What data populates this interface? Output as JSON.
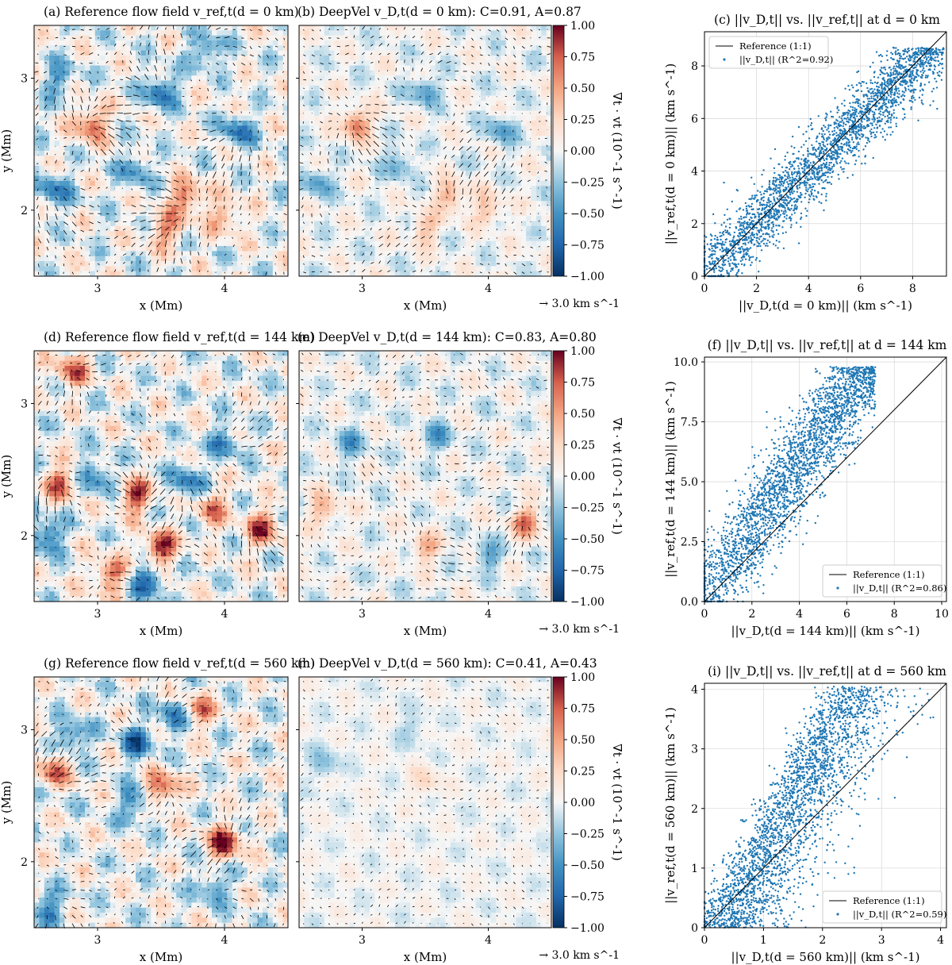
{
  "figure": {
    "rows": [
      {
        "depth_km": 0,
        "ref_title": "(a) Reference flow field v_ref,t(d = 0 km)",
        "deep_title": "(b) DeepVel v_D,t(d = 0 km): C=0.91, A=0.87",
        "scatter_title": "(c) ||v_D,t|| vs. ||v_ref,t|| at d = 0 km",
        "scatter_ylabel": "||v_ref,t(d = 0 km)|| (km s^-1)",
        "scatter_xlabel": "||v_D,t(d = 0 km)|| (km s^-1)"
      },
      {
        "depth_km": 144,
        "ref_title": "(d) Reference flow field v_ref,t(d = 144 km)",
        "deep_title": "(e) DeepVel v_D,t(d = 144 km): C=0.83, A=0.80",
        "scatter_title": "(f) ||v_D,t|| vs. ||v_ref,t|| at d = 144 km",
        "scatter_ylabel": "||v_ref,t(d = 144 km)|| (km s^-1)",
        "scatter_xlabel": "||v_D,t(d = 144 km)|| (km s^-1)"
      },
      {
        "depth_km": 560,
        "ref_title": "(g) Reference flow field v_ref,t(d = 560 km)",
        "deep_title": "(h) DeepVel v_D,t(d = 560 km): C=0.41, A=0.43",
        "scatter_title": "(i) ||v_D,t|| vs. ||v_ref,t|| at d = 560 km",
        "scatter_ylabel": "||v_ref,t(d = 560 km)|| (km s^-1)",
        "scatter_xlabel": "||v_D,t(d = 560 km)|| (km s^-1)"
      }
    ],
    "map_xlabel": "x (Mm)",
    "map_ylabel": "y (Mm)",
    "colorbar_label": "∇t · vt (10^-1 s^-1)",
    "quiver_key": "→ 3.0 km s^-1",
    "colors": {
      "positive": "#67001f",
      "negative": "#053061",
      "scatter": "#1f77b4",
      "reference_line": "#000000"
    }
  },
  "chart_data": [
    {
      "type": "heatmap",
      "panel": "a",
      "title": "(a) Reference flow field v_ref,t(d = 0 km)",
      "xlabel": "x (Mm)",
      "ylabel": "y (Mm)",
      "xlim": [
        2.5,
        4.5
      ],
      "ylim": [
        1.5,
        3.4
      ],
      "xticks": [
        3,
        4
      ],
      "yticks": [
        2,
        3
      ],
      "overlay": "velocity arrows",
      "features": [
        {
          "x": 2.95,
          "y": 2.65,
          "strength": 0.8
        },
        {
          "x": 3.7,
          "y": 2.1,
          "strength": 0.7
        },
        {
          "x": 3.55,
          "y": 1.85,
          "strength": 0.6
        },
        {
          "x": 4.0,
          "y": 1.95,
          "strength": 0.5
        },
        {
          "x": 2.65,
          "y": 2.15,
          "strength": -0.6
        },
        {
          "x": 3.5,
          "y": 2.9,
          "strength": -0.7
        },
        {
          "x": 3.3,
          "y": 2.3,
          "strength": -0.5
        },
        {
          "x": 4.1,
          "y": 2.6,
          "strength": -0.6
        },
        {
          "x": 2.7,
          "y": 3.0,
          "strength": -0.5
        },
        {
          "x": 3.85,
          "y": 3.2,
          "strength": -0.55
        }
      ]
    },
    {
      "type": "heatmap",
      "panel": "b",
      "title": "(b) DeepVel v_D,t(d = 0 km): C=0.91, A=0.87",
      "xlabel": "x (Mm)",
      "xlim": [
        2.5,
        4.5
      ],
      "ylim": [
        1.5,
        3.4
      ],
      "xticks": [
        3,
        4
      ],
      "yticks": [
        2,
        3
      ],
      "colorbar": {
        "min": -1.0,
        "max": 1.0,
        "ticks": [
          -1.0,
          -0.75,
          -0.5,
          -0.25,
          0.0,
          0.25,
          0.5,
          0.75,
          1.0
        ],
        "label": "∇t · vt (10^-1 s^-1)",
        "colormap": "RdBu_r"
      },
      "features": [
        {
          "x": 2.95,
          "y": 2.65,
          "strength": 0.7
        },
        {
          "x": 3.7,
          "y": 2.1,
          "strength": 0.5
        },
        {
          "x": 3.5,
          "y": 1.85,
          "strength": 0.4
        },
        {
          "x": 4.0,
          "y": 2.0,
          "strength": 0.4
        },
        {
          "x": 2.65,
          "y": 2.2,
          "strength": -0.45
        },
        {
          "x": 3.5,
          "y": 2.9,
          "strength": -0.5
        },
        {
          "x": 3.3,
          "y": 2.35,
          "strength": -0.4
        },
        {
          "x": 4.1,
          "y": 2.6,
          "strength": -0.45
        }
      ]
    },
    {
      "type": "scatter",
      "panel": "c",
      "title": "(c) ||v_D,t|| vs. ||v_ref,t|| at d = 0 km",
      "xlabel": "||v_D,t(d = 0 km)|| (km s^-1)",
      "ylabel": "||v_ref,t(d = 0 km)|| (km s^-1)",
      "xlim": [
        0,
        9.3
      ],
      "ylim": [
        0,
        9.3
      ],
      "xticks": [
        0,
        2,
        4,
        6,
        8
      ],
      "yticks": [
        0,
        2,
        4,
        6,
        8
      ],
      "grid": true,
      "legend_position": "top-left",
      "series": [
        {
          "name": "Reference (1:1)",
          "type": "line",
          "x": [
            0,
            9.3
          ],
          "y": [
            0,
            9.3
          ]
        },
        {
          "name": "||v_D,t|| (R^2=0.92)",
          "type": "scatter",
          "r2": 0.92,
          "x_range": [
            0,
            9.2
          ],
          "y_range": [
            0,
            8.7
          ],
          "spread": 0.75
        }
      ]
    },
    {
      "type": "heatmap",
      "panel": "d",
      "title": "(d) Reference flow field v_ref,t(d = 144 km)",
      "xlabel": "x (Mm)",
      "ylabel": "y (Mm)",
      "xlim": [
        2.5,
        4.5
      ],
      "ylim": [
        1.5,
        3.4
      ],
      "xticks": [
        3,
        4
      ],
      "yticks": [
        2,
        3
      ],
      "features": [
        {
          "x": 3.5,
          "y": 1.9,
          "strength": 0.9
        },
        {
          "x": 3.3,
          "y": 2.3,
          "strength": 0.8
        },
        {
          "x": 2.7,
          "y": 2.4,
          "strength": 0.7
        },
        {
          "x": 4.3,
          "y": 2.05,
          "strength": 0.8
        },
        {
          "x": 3.9,
          "y": 2.2,
          "strength": 0.6
        },
        {
          "x": 2.8,
          "y": 3.25,
          "strength": 0.7
        },
        {
          "x": 3.1,
          "y": 1.7,
          "strength": 0.7
        },
        {
          "x": 2.6,
          "y": 2.0,
          "strength": -0.7
        },
        {
          "x": 3.0,
          "y": 2.45,
          "strength": -0.6
        },
        {
          "x": 3.7,
          "y": 2.4,
          "strength": -0.6
        },
        {
          "x": 4.0,
          "y": 2.7,
          "strength": -0.5
        },
        {
          "x": 3.4,
          "y": 1.65,
          "strength": -0.7
        }
      ]
    },
    {
      "type": "heatmap",
      "panel": "e",
      "title": "(e) DeepVel v_D,t(d = 144 km): C=0.83, A=0.80",
      "xlabel": "x (Mm)",
      "xlim": [
        2.5,
        4.5
      ],
      "ylim": [
        1.5,
        3.4
      ],
      "xticks": [
        3,
        4
      ],
      "yticks": [
        2,
        3
      ],
      "colorbar": {
        "min": -1.0,
        "max": 1.0,
        "ticks": [
          -1.0,
          -0.75,
          -0.5,
          -0.25,
          0.0,
          0.25,
          0.5,
          0.75,
          1.0
        ],
        "label": "∇t · vt (10^-1 s^-1)",
        "colormap": "RdBu_r"
      },
      "features": [
        {
          "x": 4.3,
          "y": 2.1,
          "strength": 0.7
        },
        {
          "x": 2.7,
          "y": 2.2,
          "strength": 0.45
        },
        {
          "x": 3.5,
          "y": 1.9,
          "strength": 0.45
        },
        {
          "x": 2.9,
          "y": 2.7,
          "strength": -0.45
        },
        {
          "x": 3.6,
          "y": 2.75,
          "strength": -0.45
        },
        {
          "x": 4.0,
          "y": 1.85,
          "strength": -0.4
        }
      ]
    },
    {
      "type": "scatter",
      "panel": "f",
      "title": "(f) ||v_D,t|| vs. ||v_ref,t|| at d = 144 km",
      "xlabel": "||v_D,t(d = 144 km)|| (km s^-1)",
      "ylabel": "||v_ref,t(d = 144 km)|| (km s^-1)",
      "xlim": [
        0,
        10.2
      ],
      "ylim": [
        0,
        10.2
      ],
      "xticks": [
        0,
        2,
        4,
        6,
        8,
        10
      ],
      "yticks": [
        0.0,
        2.5,
        5.0,
        7.5,
        10.0
      ],
      "grid": true,
      "legend_position": "bottom-right",
      "series": [
        {
          "name": "Reference (1:1)",
          "type": "line",
          "x": [
            0,
            10.2
          ],
          "y": [
            0,
            10.2
          ]
        },
        {
          "name": "||v_D,t|| (R^2=0.86)",
          "type": "scatter",
          "r2": 0.86,
          "x_range": [
            0,
            7.2
          ],
          "y_range": [
            0,
            9.8
          ],
          "spread": 1.0
        }
      ]
    },
    {
      "type": "heatmap",
      "panel": "g",
      "title": "(g) Reference flow field v_ref,t(d = 560 km)",
      "xlabel": "x (Mm)",
      "ylabel": "y (Mm)",
      "xlim": [
        2.5,
        4.5
      ],
      "ylim": [
        1.5,
        3.4
      ],
      "xticks": [
        3,
        4
      ],
      "yticks": [
        2,
        3
      ],
      "features": [
        {
          "x": 3.5,
          "y": 2.55,
          "strength": 0.8
        },
        {
          "x": 4.0,
          "y": 2.15,
          "strength": 0.9
        },
        {
          "x": 2.65,
          "y": 2.7,
          "strength": 0.7
        },
        {
          "x": 3.8,
          "y": 3.15,
          "strength": 0.6
        },
        {
          "x": 3.3,
          "y": 2.9,
          "strength": -0.7
        },
        {
          "x": 3.6,
          "y": 3.1,
          "strength": -0.6
        },
        {
          "x": 2.8,
          "y": 2.95,
          "strength": -0.6
        },
        {
          "x": 3.3,
          "y": 2.45,
          "strength": -0.6
        },
        {
          "x": 3.9,
          "y": 1.8,
          "strength": -0.5
        },
        {
          "x": 2.6,
          "y": 1.65,
          "strength": -0.6
        }
      ]
    },
    {
      "type": "heatmap",
      "panel": "h",
      "title": "(h) DeepVel v_D,t(d = 560 km): C=0.41, A=0.43",
      "xlabel": "x (Mm)",
      "xlim": [
        2.5,
        4.5
      ],
      "ylim": [
        1.5,
        3.4
      ],
      "xticks": [
        3,
        4
      ],
      "yticks": [
        2,
        3
      ],
      "colorbar": {
        "min": -1.0,
        "max": 1.0,
        "ticks": [
          -1.0,
          -0.75,
          -0.5,
          -0.25,
          0.0,
          0.25,
          0.5,
          0.75,
          1.0
        ],
        "label": "∇t · vt (10^-1 s^-1)",
        "colormap": "RdBu_r"
      },
      "features": [
        {
          "x": 3.5,
          "y": 2.6,
          "strength": 0.25
        },
        {
          "x": 2.7,
          "y": 2.75,
          "strength": -0.3
        },
        {
          "x": 3.4,
          "y": 3.0,
          "strength": -0.2
        }
      ]
    },
    {
      "type": "scatter",
      "panel": "i",
      "title": "(i) ||v_D,t|| vs. ||v_ref,t|| at d = 560 km",
      "xlabel": "||v_D,t(d = 560 km)|| (km s^-1)",
      "ylabel": "||v_ref,t(d = 560 km)|| (km s^-1)",
      "xlim": [
        0,
        4.1
      ],
      "ylim": [
        0,
        4.1
      ],
      "xticks": [
        0,
        1,
        2,
        3,
        4
      ],
      "yticks": [
        0,
        1,
        2,
        3,
        4
      ],
      "grid": true,
      "legend_position": "bottom-right",
      "series": [
        {
          "name": "Reference (1:1)",
          "type": "line",
          "x": [
            0,
            4.1
          ],
          "y": [
            0,
            4.1
          ]
        },
        {
          "name": "||v_D,t|| (R^2=0.59)",
          "type": "scatter",
          "r2": 0.59,
          "x_range": [
            0,
            4.0
          ],
          "y_range": [
            0,
            4.05
          ],
          "spread": 0.8
        }
      ]
    }
  ]
}
